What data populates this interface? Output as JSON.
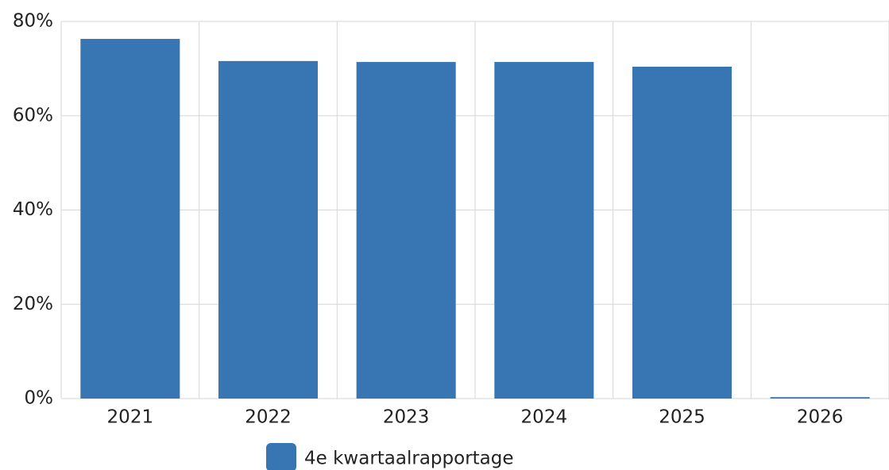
{
  "chart_data": {
    "type": "bar",
    "categories": [
      "2021",
      "2022",
      "2023",
      "2024",
      "2025",
      "2026"
    ],
    "series": [
      {
        "name": "4e kwartaalrapportage",
        "color": "#3776b3",
        "values": [
          76.3,
          71.6,
          71.4,
          71.4,
          70.4,
          0.3
        ]
      }
    ],
    "ylim": [
      0,
      80
    ],
    "yticks": [
      {
        "value": 0,
        "label": "0%"
      },
      {
        "value": 20,
        "label": "20%"
      },
      {
        "value": 40,
        "label": "40%"
      },
      {
        "value": 60,
        "label": "60%"
      },
      {
        "value": 80,
        "label": "80%"
      }
    ],
    "grid": true,
    "legend": "bottom"
  }
}
